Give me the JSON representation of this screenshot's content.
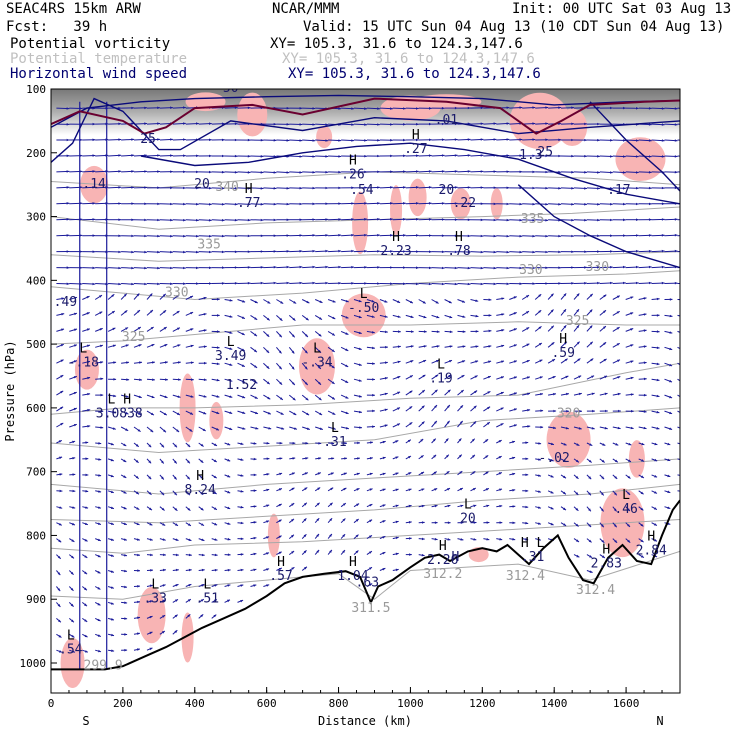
{
  "header": {
    "model": "SEAC4RS 15km ARW",
    "org": "NCAR/MMM",
    "init": "Init: 00 UTC Sat 03 Aug 13",
    "fcst": "Fcst:   39 h",
    "valid": "Valid: 15 UTC Sun 04 Aug 13 (10 CDT Sun 04 Aug 13)"
  },
  "fields": [
    {
      "name": "Potential vorticity",
      "xy": "XY= 105.3, 31.6 to 124.3,147.6",
      "color": "#000000"
    },
    {
      "name": "Potential temperature",
      "xy": "XY= 105.3, 31.6 to 124.3,147.6",
      "color": "#bdbdbd"
    },
    {
      "name": "Horizontal wind speed",
      "xy": "XY= 105.3, 31.6 to 124.3,147.6",
      "color": "#000070"
    }
  ],
  "colors": {
    "theta": "#a8a8a8",
    "vector": "#1a1a9a",
    "contour": "#0a0a7a",
    "pv_fill": "#f8b4b4",
    "pv_contour": "#6a0030",
    "terrain": "#000000"
  },
  "chart_data": {
    "type": "cross-section",
    "xlabel": "Distance (km)",
    "ylabel": "Pressure (hPa)",
    "x_ticks": [
      "0",
      "200",
      "400",
      "600",
      "800",
      "1000",
      "1200",
      "1400",
      "1600"
    ],
    "y_ticks": [
      "100",
      "200",
      "300",
      "400",
      "500",
      "600",
      "700",
      "800",
      "900",
      "1000"
    ],
    "xlim": [
      0,
      1750
    ],
    "ylim": [
      1045,
      100
    ],
    "endpoint_labels": {
      "left": "S",
      "right": "N"
    },
    "theta_labels": [
      {
        "x": 490,
        "p": 260,
        "text": "340"
      },
      {
        "x": 440,
        "p": 350,
        "text": "335"
      },
      {
        "x": 350,
        "p": 425,
        "text": "330"
      },
      {
        "x": 230,
        "p": 495,
        "text": "325"
      },
      {
        "x": 1340,
        "p": 310,
        "text": "335"
      },
      {
        "x": 1335,
        "p": 390,
        "text": "330"
      },
      {
        "x": 1520,
        "p": 385,
        "text": "330"
      },
      {
        "x": 1465,
        "p": 470,
        "text": "325"
      },
      {
        "x": 1440,
        "p": 615,
        "text": "320"
      },
      {
        "x": 890,
        "p": 920,
        "text": "311.5"
      },
      {
        "x": 1090,
        "p": 867,
        "text": "312.2"
      },
      {
        "x": 1320,
        "p": 870,
        "text": "312.4"
      },
      {
        "x": 1515,
        "p": 892,
        "text": "312.4"
      },
      {
        "x": 145,
        "p": 1010,
        "text": "299.9"
      }
    ],
    "extrema": [
      {
        "x": 120,
        "p": 255,
        "type": "",
        "value": ".14"
      },
      {
        "x": 40,
        "p": 440,
        "type": "",
        "value": ".49"
      },
      {
        "x": 90,
        "p": 535,
        "type": "L",
        "value": "-.18"
      },
      {
        "x": 190,
        "p": 615,
        "type": "L H",
        "value": "3.0838"
      },
      {
        "x": 500,
        "p": 525,
        "type": "L",
        "value": "3.49"
      },
      {
        "x": 530,
        "p": 570,
        "type": "",
        "value": "1.52"
      },
      {
        "x": 420,
        "p": 255,
        "type": "",
        "value": "20"
      },
      {
        "x": 550,
        "p": 285,
        "type": "H",
        "value": ".77"
      },
      {
        "x": 740,
        "p": 535,
        "type": "L",
        "value": "-.34"
      },
      {
        "x": 840,
        "p": 240,
        "type": "H",
        "value": ".26"
      },
      {
        "x": 865,
        "p": 265,
        "type": "",
        "value": ".54"
      },
      {
        "x": 960,
        "p": 360,
        "type": "H",
        "value": "2.23"
      },
      {
        "x": 870,
        "p": 450,
        "type": "L",
        "value": "-.50"
      },
      {
        "x": 1015,
        "p": 200,
        "type": "H",
        "value": ".27"
      },
      {
        "x": 1100,
        "p": 265,
        "type": "",
        "value": "20"
      },
      {
        "x": 1150,
        "p": 285,
        "type": "",
        "value": ".22"
      },
      {
        "x": 1135,
        "p": 360,
        "type": "H",
        "value": ".78"
      },
      {
        "x": 1335,
        "p": 210,
        "type": "",
        "value": "1.3"
      },
      {
        "x": 1375,
        "p": 205,
        "type": "",
        "value": "25"
      },
      {
        "x": 1100,
        "p": 155,
        "type": "",
        "value": ".01"
      },
      {
        "x": 1580,
        "p": 265,
        "type": "",
        "value": ".17"
      },
      {
        "x": 1085,
        "p": 560,
        "type": "L",
        "value": ".19"
      },
      {
        "x": 1425,
        "p": 520,
        "type": "H",
        "value": ".59"
      },
      {
        "x": 790,
        "p": 660,
        "type": "L",
        "value": ".31"
      },
      {
        "x": 415,
        "p": 735,
        "type": "H",
        "value": "8.24"
      },
      {
        "x": 1160,
        "p": 780,
        "type": "L",
        "value": "20"
      },
      {
        "x": 1400,
        "p": 685,
        "type": "",
        "value": "-.02"
      },
      {
        "x": 1600,
        "p": 765,
        "type": "L",
        "value": ".46"
      },
      {
        "x": 1670,
        "p": 830,
        "type": "H",
        "value": "2.84"
      },
      {
        "x": 640,
        "p": 870,
        "type": "H",
        "value": ".57"
      },
      {
        "x": 840,
        "p": 870,
        "type": "H",
        "value": "1.04"
      },
      {
        "x": 880,
        "p": 880,
        "type": "",
        "value": ".63"
      },
      {
        "x": 1090,
        "p": 845,
        "type": "H",
        "value": "2.26"
      },
      {
        "x": 1125,
        "p": 840,
        "type": "",
        "value": "H"
      },
      {
        "x": 1340,
        "p": 840,
        "type": "H L",
        "value": ".31"
      },
      {
        "x": 1545,
        "p": 850,
        "type": "H",
        "value": "2.83"
      },
      {
        "x": 290,
        "p": 905,
        "type": "L",
        "value": ".33"
      },
      {
        "x": 435,
        "p": 905,
        "type": "L",
        "value": ".51"
      },
      {
        "x": 55,
        "p": 985,
        "type": "L",
        "value": ".54"
      },
      {
        "x": 500,
        "p": 105,
        "type": "",
        "value": "50"
      },
      {
        "x": 270,
        "p": 185,
        "type": "",
        "value": "25"
      }
    ]
  }
}
